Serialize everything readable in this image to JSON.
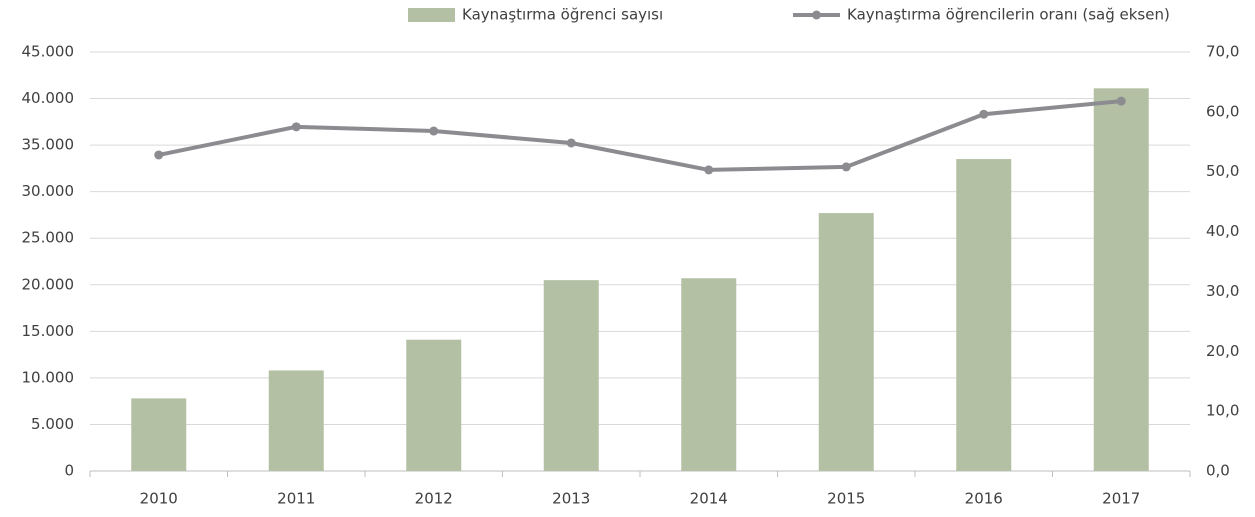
{
  "chart_data": {
    "type": "bar-line",
    "categories": [
      "2010",
      "2011",
      "2012",
      "2013",
      "2014",
      "2015",
      "2016",
      "2017"
    ],
    "series": [
      {
        "name": "Kaynaştırma öğrenci sayısı",
        "color": "#b3c0a4",
        "type": "bar",
        "axis": "y",
        "values": [
          7800,
          10800,
          14100,
          20500,
          20700,
          27700,
          33500,
          41100
        ]
      },
      {
        "name": "Kaynaştırma öğrencilerin oranı (sağ eksen)",
        "color": "#8c8c90",
        "type": "line",
        "axis": "y2",
        "values": [
          52.8,
          57.5,
          56.8,
          54.8,
          50.3,
          50.8,
          59.6,
          61.8
        ]
      }
    ],
    "ylim": [
      0,
      45000
    ],
    "yticks": [
      0,
      {
        "value": 5000,
        "label": "5.000"
      },
      {
        "value": 10000,
        "label": "10.000"
      },
      {
        "value": 15000,
        "label": "15.000"
      },
      {
        "value": 20000,
        "label": "20.000"
      },
      {
        "value": 25000,
        "label": "25.000"
      },
      {
        "value": 30000,
        "label": "30.000"
      },
      {
        "value": 35000,
        "label": "35.000"
      },
      {
        "value": 40000,
        "label": "40.000"
      },
      {
        "value": 45000,
        "label": "45.000"
      }
    ],
    "y2lim": [
      0,
      70
    ],
    "y2ticks": [
      {
        "value": 0,
        "label": "0,0"
      },
      {
        "value": 10,
        "label": "10,0"
      },
      {
        "value": 20,
        "label": "20,0"
      },
      {
        "value": 30,
        "label": "30,0"
      },
      {
        "value": 40,
        "label": "40,0"
      },
      {
        "value": 50,
        "label": "50,0"
      },
      {
        "value": 60,
        "label": "60,0"
      },
      {
        "value": 70,
        "label": "70,0"
      }
    ],
    "grid": true,
    "legend": "top"
  }
}
